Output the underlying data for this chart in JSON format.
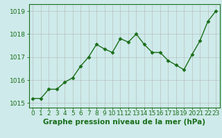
{
  "x": [
    0,
    1,
    2,
    3,
    4,
    5,
    6,
    7,
    8,
    9,
    10,
    11,
    12,
    13,
    14,
    15,
    16,
    17,
    18,
    19,
    20,
    21,
    22,
    23
  ],
  "y": [
    1015.2,
    1015.2,
    1015.6,
    1015.6,
    1015.9,
    1016.1,
    1016.6,
    1017.0,
    1017.55,
    1017.35,
    1017.2,
    1017.8,
    1017.65,
    1018.0,
    1017.55,
    1017.2,
    1017.2,
    1016.85,
    1016.65,
    1016.45,
    1017.1,
    1017.7,
    1018.55,
    1019.0
  ],
  "line_color": "#1a6e1a",
  "marker": "D",
  "marker_size": 2.5,
  "line_width": 1.0,
  "bg_color": "#ceeaea",
  "grid_color": "#b0b0b0",
  "xlabel": "Graphe pression niveau de la mer (hPa)",
  "xlabel_fontsize": 7.5,
  "xlabel_color": "#1a6e1a",
  "tick_color": "#1a6e1a",
  "tick_fontsize": 6.5,
  "ylim": [
    1014.8,
    1019.3
  ],
  "xlim": [
    -0.5,
    23.5
  ],
  "yticks": [
    1015,
    1016,
    1017,
    1018,
    1019
  ],
  "xticks": [
    0,
    1,
    2,
    3,
    4,
    5,
    6,
    7,
    8,
    9,
    10,
    11,
    12,
    13,
    14,
    15,
    16,
    17,
    18,
    19,
    20,
    21,
    22,
    23
  ]
}
